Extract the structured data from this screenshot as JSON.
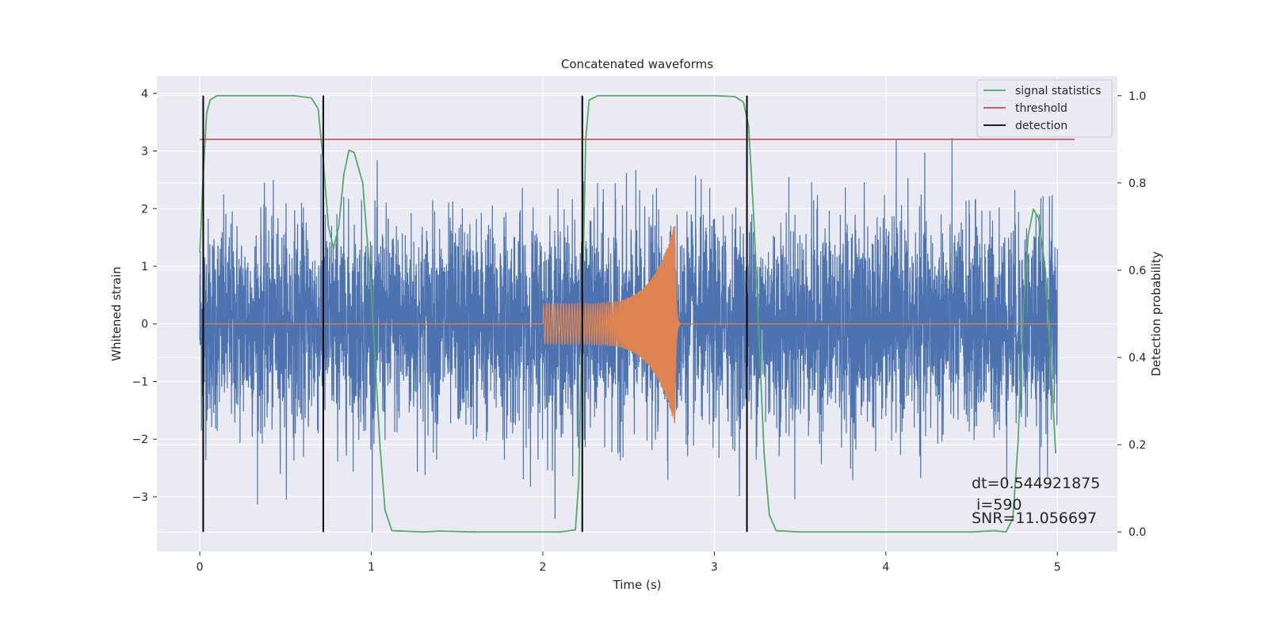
{
  "chart_data": {
    "type": "line",
    "title": "Concatenated waveforms",
    "xlabel": "Time (s)",
    "ylabel": "Whitened strain",
    "y2label": "Detection probability",
    "xlim": [
      -0.25,
      5.35
    ],
    "ylim": [
      -3.95,
      4.3
    ],
    "y2lim": [
      -0.045,
      1.045
    ],
    "xticks": [
      0,
      1,
      2,
      3,
      4,
      5
    ],
    "yticks": [
      -3,
      -2,
      -1,
      0,
      1,
      2,
      3,
      4
    ],
    "y2ticks": [
      0.0,
      0.2,
      0.4,
      0.6,
      0.8,
      1.0
    ],
    "grid": true,
    "legend_position": "top-right",
    "series": [
      {
        "name": "",
        "axis": "left",
        "color": "#4c72b0",
        "description": "whitened strain noise, roughly Gaussian with std ~0.9 over 0–5 s",
        "x_range": [
          0,
          5
        ],
        "std": 0.9
      },
      {
        "name": "",
        "axis": "left",
        "color": "#dd8452",
        "description": "injected chirp signal",
        "chirp": {
          "start": 2.0,
          "merger": 2.77,
          "ringdown_end": 2.8,
          "amp_start": 0.35,
          "amp_peak": 1.75
        }
      },
      {
        "name": "signal statistics",
        "axis": "right",
        "color": "#55a868",
        "points": [
          [
            0.0,
            0.64
          ],
          [
            0.02,
            0.82
          ],
          [
            0.04,
            0.96
          ],
          [
            0.06,
            0.99
          ],
          [
            0.1,
            1.0
          ],
          [
            0.3,
            1.0
          ],
          [
            0.55,
            1.0
          ],
          [
            0.65,
            0.995
          ],
          [
            0.69,
            0.97
          ],
          [
            0.72,
            0.85
          ],
          [
            0.75,
            0.7
          ],
          [
            0.78,
            0.65
          ],
          [
            0.81,
            0.7
          ],
          [
            0.84,
            0.82
          ],
          [
            0.87,
            0.875
          ],
          [
            0.9,
            0.87
          ],
          [
            0.95,
            0.8
          ],
          [
            1.0,
            0.55
          ],
          [
            1.05,
            0.2
          ],
          [
            1.08,
            0.05
          ],
          [
            1.12,
            0.003
          ],
          [
            1.3,
            0.0
          ],
          [
            1.4,
            0.002
          ],
          [
            1.6,
            0.0
          ],
          [
            2.1,
            0.0
          ],
          [
            2.19,
            0.005
          ],
          [
            2.21,
            0.12
          ],
          [
            2.23,
            0.5
          ],
          [
            2.25,
            0.9
          ],
          [
            2.27,
            0.99
          ],
          [
            2.32,
            1.0
          ],
          [
            3.0,
            1.0
          ],
          [
            3.12,
            0.998
          ],
          [
            3.17,
            0.985
          ],
          [
            3.2,
            0.93
          ],
          [
            3.23,
            0.72
          ],
          [
            3.26,
            0.45
          ],
          [
            3.29,
            0.18
          ],
          [
            3.32,
            0.04
          ],
          [
            3.36,
            0.003
          ],
          [
            3.5,
            0.0
          ],
          [
            4.5,
            0.0
          ],
          [
            4.63,
            0.003
          ],
          [
            4.7,
            0.0
          ],
          [
            4.74,
            0.03
          ],
          [
            4.77,
            0.2
          ],
          [
            4.8,
            0.5
          ],
          [
            4.83,
            0.68
          ],
          [
            4.86,
            0.74
          ],
          [
            4.89,
            0.72
          ],
          [
            4.93,
            0.6
          ],
          [
            4.96,
            0.4
          ],
          [
            4.99,
            0.18
          ]
        ]
      },
      {
        "name": "threshold",
        "axis": "right",
        "color": "#c44e52",
        "value": 0.9,
        "x_range": [
          0,
          5.1
        ]
      },
      {
        "name": "detection",
        "axis": "right",
        "color": "#000000",
        "x_values": [
          0.02,
          0.72,
          2.23,
          3.19
        ],
        "y_range": [
          0.0,
          1.0
        ]
      }
    ],
    "annotations": [
      {
        "lines": [
          "dt=0.544921875",
          " i=590",
          "SNR=11.056697"
        ],
        "position": "bottom-right"
      }
    ]
  }
}
